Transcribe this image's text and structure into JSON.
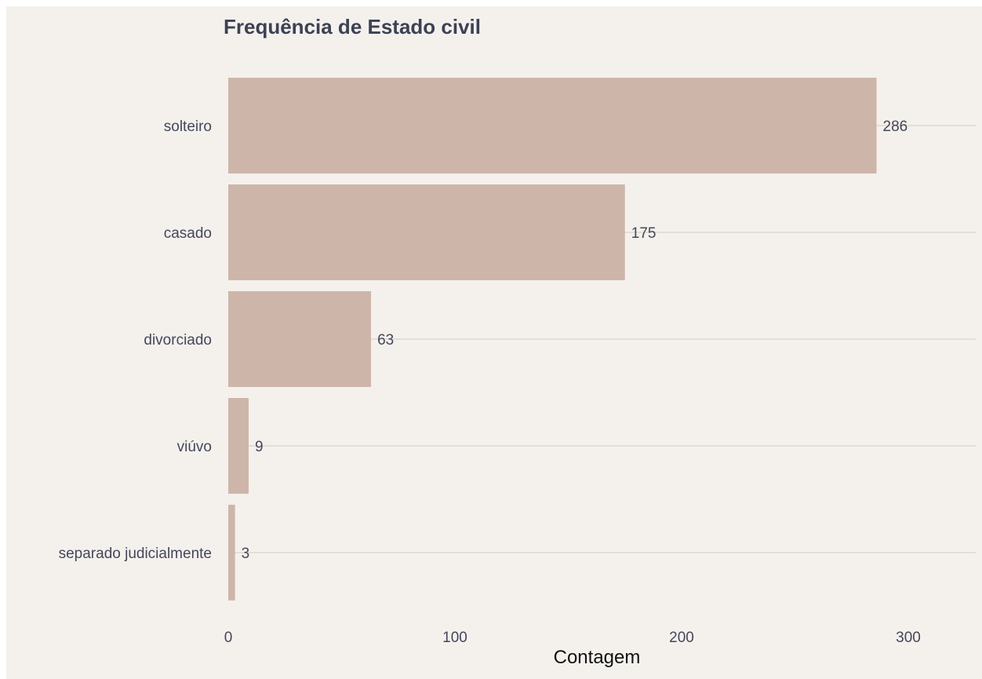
{
  "chart_data": {
    "type": "bar",
    "orientation": "horizontal",
    "title": "Frequência de Estado civil",
    "xlabel": "Contagem",
    "ylabel": "",
    "categories": [
      "solteiro",
      "casado",
      "divorciado",
      "viúvo",
      "separado judicialmente"
    ],
    "values": [
      286,
      175,
      63,
      9,
      3
    ],
    "value_labels": [
      "286",
      "175",
      "63",
      "9",
      "3"
    ],
    "xlim": [
      0,
      325
    ],
    "x_ticks": [
      0,
      100,
      200,
      300
    ],
    "x_tick_labels": [
      "0",
      "100",
      "200",
      "300"
    ],
    "grid": "horizontal major lines",
    "legend": "none",
    "colors": {
      "bar": "#cdb6a9",
      "background": "#f4f1ed",
      "grid": "#e8ddd4",
      "text": "#44475a",
      "title": "#3d4154"
    }
  }
}
